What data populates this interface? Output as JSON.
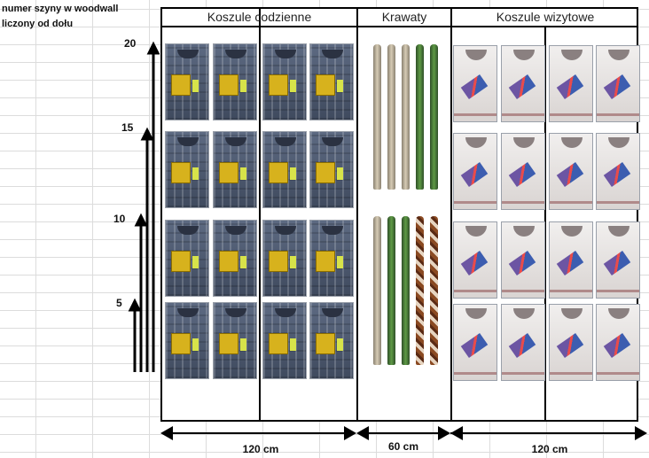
{
  "note": {
    "line1": "numer szyny w woodwall",
    "line2": "liczony od dołu"
  },
  "axis": {
    "ticks": [
      "5",
      "10",
      "15",
      "20"
    ]
  },
  "sections": [
    {
      "title": "Koszule codzienne",
      "width_label": "120 cm"
    },
    {
      "title": "Krawaty",
      "width_label": "60 cm"
    },
    {
      "title": "Koszule wizytowe",
      "width_label": "120 cm"
    }
  ],
  "colors": {
    "frame": "#000000",
    "casual_shirt": "#4b5870",
    "formal_shirt": "#e8e4e2",
    "tie_green": "#4f8a3a",
    "tie_beige": "#c8bda6",
    "tie_pattern": "#8b4a22"
  }
}
